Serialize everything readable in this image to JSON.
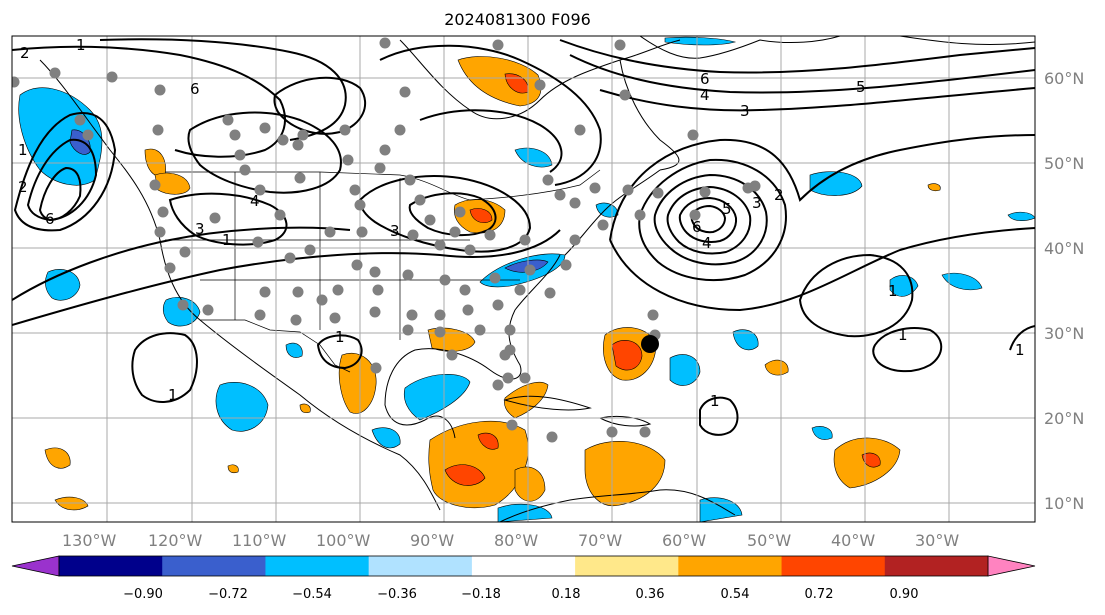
{
  "title": "2024081300 F096",
  "lon_labels": [
    "130°W",
    "120°W",
    "110°W",
    "100°W",
    "90°W",
    "80°W",
    "70°W",
    "60°W",
    "50°W",
    "40°W",
    "30°W"
  ],
  "lat_labels": [
    "60°N",
    "50°N",
    "40°N",
    "30°N",
    "20°N",
    "10°N"
  ],
  "colorbar": {
    "tick_labels": [
      "−0.90",
      "−0.72",
      "−0.54",
      "−0.36",
      "−0.18",
      "0.18",
      "0.36",
      "0.54",
      "0.72",
      "0.90"
    ],
    "colors": [
      "#9a32cd",
      "#00008b",
      "#3a5fcd",
      "#00bfff",
      "#b0e2ff",
      "#ffffff",
      "#ffe88a",
      "#ffa500",
      "#ff4500",
      "#b22222",
      "#ff83c0"
    ]
  },
  "contour_labels": [
    "1",
    "2",
    "3",
    "4",
    "5",
    "6"
  ],
  "marker_colors": {
    "station": "#808080",
    "storm": "#000000"
  }
}
